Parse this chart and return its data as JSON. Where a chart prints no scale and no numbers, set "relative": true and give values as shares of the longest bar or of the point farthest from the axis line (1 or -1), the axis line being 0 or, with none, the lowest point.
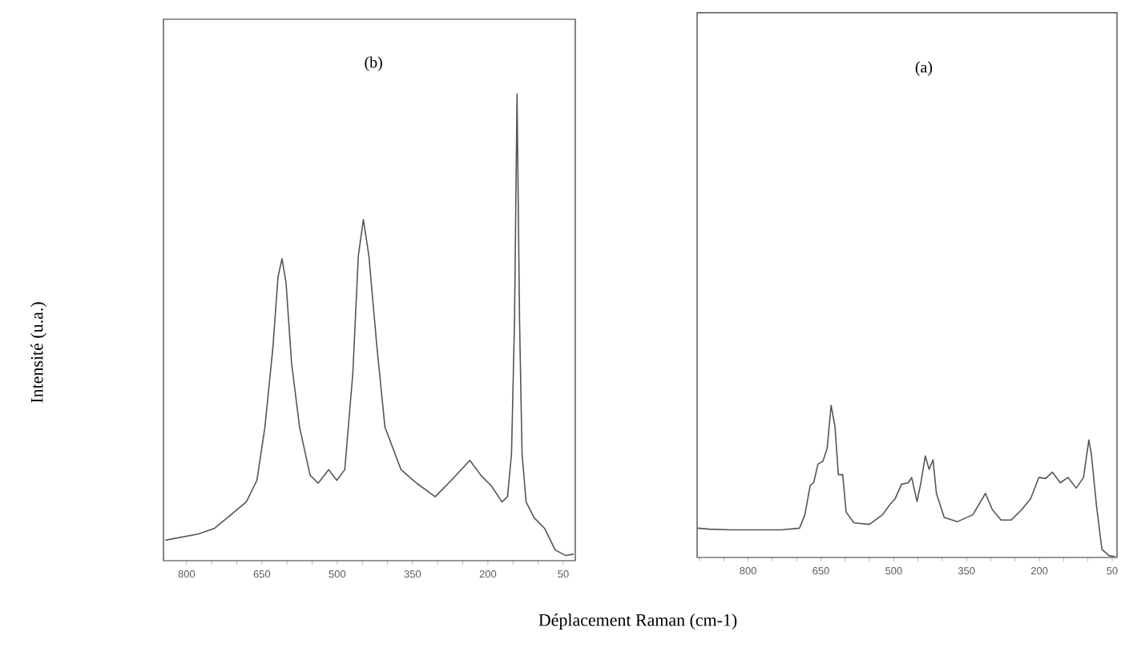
{
  "chart_data": [
    {
      "type": "line",
      "title": "(b)",
      "ylabel": "Intensité (u.a.)",
      "xlabel": "Déplacement Raman (cm-1)",
      "relative": true,
      "xlim": [
        846,
        26
      ],
      "xticks": [
        800,
        {
          "value": 750,
          "label": null
        },
        {
          "value": 700,
          "label": null
        },
        650,
        {
          "value": 600,
          "label": null
        },
        {
          "value": 550,
          "label": null
        },
        500,
        {
          "value": 450,
          "label": null
        },
        {
          "value": 400,
          "label": null
        },
        350,
        {
          "value": 300,
          "label": null
        },
        {
          "value": 250,
          "label": null
        },
        200,
        {
          "value": 150,
          "label": null
        },
        {
          "value": 100,
          "label": null
        },
        50
      ],
      "series": [
        {
          "color": "#555555",
          "x": [
            842,
            777,
            745,
            713,
            681,
            660,
            644,
            628,
            618,
            610,
            602,
            591,
            575,
            554,
            538,
            517,
            501,
            485,
            469,
            458,
            448,
            437,
            421,
            405,
            373,
            342,
            305,
            273,
            236,
            214,
            193,
            172,
            161,
            153,
            147,
            142,
            137,
            132,
            124,
            108,
            87,
            66,
            45,
            29
          ],
          "values": [
            0.044,
            0.057,
            0.069,
            0.097,
            0.126,
            0.172,
            0.286,
            0.458,
            0.607,
            0.647,
            0.596,
            0.424,
            0.286,
            0.183,
            0.166,
            0.195,
            0.172,
            0.195,
            0.401,
            0.653,
            0.731,
            0.653,
            0.458,
            0.286,
            0.195,
            0.166,
            0.137,
            0.172,
            0.215,
            0.183,
            0.16,
            0.126,
            0.137,
            0.229,
            0.515,
            1.0,
            0.515,
            0.229,
            0.126,
            0.092,
            0.069,
            0.023,
            0.011,
            0.014
          ]
        }
      ]
    },
    {
      "type": "line",
      "title": "(a)",
      "relative": true,
      "xlim": [
        905,
        40
      ],
      "xticks": [
        {
          "value": 900,
          "label": null
        },
        {
          "value": 850,
          "label": null
        },
        800,
        {
          "value": 750,
          "label": null
        },
        {
          "value": 700,
          "label": null
        },
        650,
        {
          "value": 600,
          "label": null
        },
        {
          "value": 550,
          "label": null
        },
        500,
        {
          "value": 450,
          "label": null
        },
        {
          "value": 400,
          "label": null
        },
        350,
        {
          "value": 300,
          "label": null
        },
        {
          "value": 250,
          "label": null
        },
        200,
        {
          "value": 150,
          "label": null
        },
        {
          "value": 100,
          "label": null
        },
        50
      ],
      "series": [
        {
          "color": "#555555",
          "x": [
            904,
            880,
            837,
            784,
            731,
            694,
            683,
            672,
            665,
            656,
            646,
            637,
            629,
            621,
            614,
            605,
            598,
            582,
            550,
            523,
            507,
            497,
            484,
            470,
            463,
            452,
            444,
            435,
            427,
            419,
            412,
            396,
            369,
            337,
            311,
            297,
            279,
            258,
            236,
            218,
            201,
            187,
            173,
            157,
            141,
            124,
            109,
            98,
            93,
            82,
            71,
            56,
            44
          ],
          "values": [
            0.193,
            0.186,
            0.182,
            0.182,
            0.182,
            0.193,
            0.281,
            0.474,
            0.491,
            0.614,
            0.632,
            0.719,
            1.0,
            0.86,
            0.544,
            0.544,
            0.298,
            0.228,
            0.218,
            0.281,
            0.351,
            0.386,
            0.481,
            0.491,
            0.526,
            0.368,
            0.491,
            0.667,
            0.579,
            0.642,
            0.421,
            0.263,
            0.235,
            0.281,
            0.421,
            0.316,
            0.246,
            0.246,
            0.316,
            0.386,
            0.526,
            0.519,
            0.561,
            0.491,
            0.526,
            0.456,
            0.526,
            0.772,
            0.684,
            0.333,
            0.053,
            0.011,
            0.007
          ]
        }
      ]
    }
  ]
}
